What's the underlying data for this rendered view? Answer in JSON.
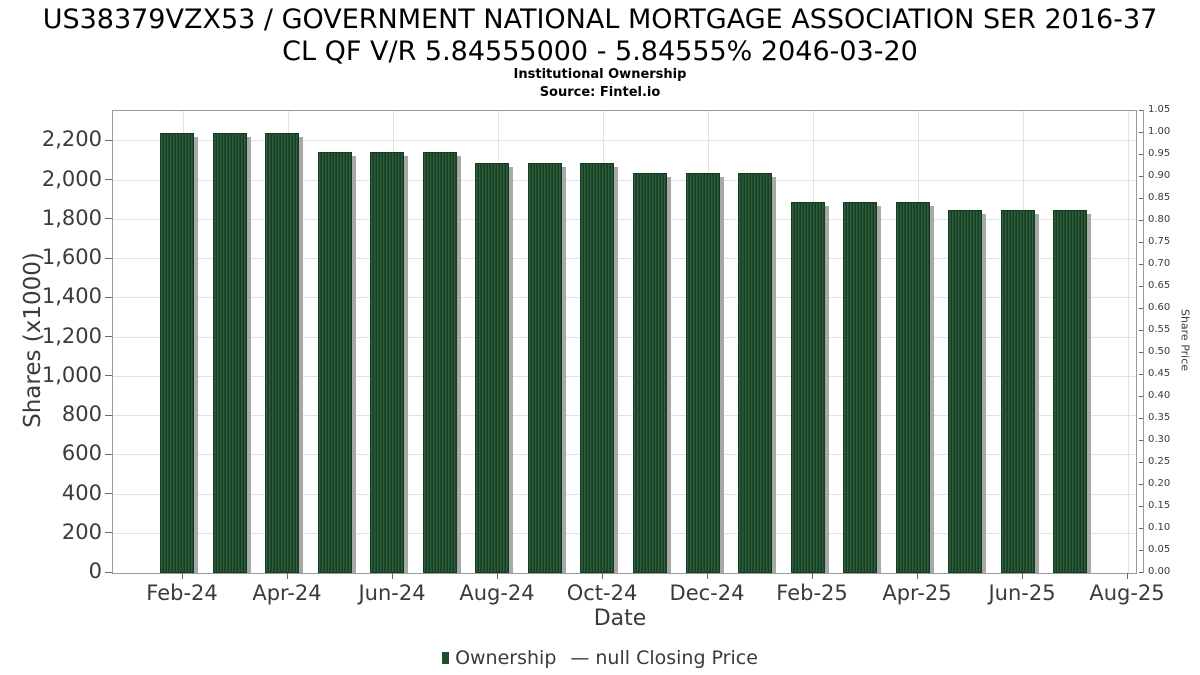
{
  "chart_data": {
    "type": "bar",
    "title_line1": "US38379VZX53 / GOVERNMENT NATIONAL MORTGAGE ASSOCIATION SER 2016-37",
    "title_line2": "CL QF V/R 5.84555000 - 5.84555% 2046-03-20",
    "subtitle": "Institutional Ownership",
    "source": "Source: Fintel.io",
    "xlabel": "Date",
    "ylabel": "Shares (x1000)",
    "y2label": "Share Price",
    "categories": [
      "Feb-24",
      "Mar-24",
      "Apr-24",
      "May-24",
      "Jun-24",
      "Jul-24",
      "Aug-24",
      "Sep-24",
      "Oct-24",
      "Nov-24",
      "Dec-24",
      "Jan-25",
      "Feb-25",
      "Mar-25",
      "Apr-25",
      "May-25",
      "Jun-25",
      "Jul-25"
    ],
    "values": [
      2245,
      2245,
      2245,
      2145,
      2145,
      2145,
      2090,
      2090,
      2090,
      2040,
      2040,
      2040,
      1890,
      1890,
      1890,
      1850,
      1850,
      1850
    ],
    "ylim": [
      0,
      2355
    ],
    "y2lim": [
      0,
      1.05
    ],
    "x_tick_labels": [
      "Feb-24",
      "Apr-24",
      "Jun-24",
      "Aug-24",
      "Oct-24",
      "Dec-24",
      "Feb-25",
      "Apr-25",
      "Jun-25",
      "Aug-25"
    ],
    "y_tick_values": [
      0,
      200,
      400,
      600,
      800,
      1000,
      1200,
      1400,
      1600,
      1800,
      2000,
      2200
    ],
    "y_tick_labels": [
      "0",
      "200",
      "400",
      "600",
      "800",
      "1,000",
      "1,200",
      "1,400",
      "1,600",
      "1,800",
      "2,000",
      "2,200"
    ],
    "y2_tick_labels": [
      "1.05",
      "1.00",
      "0.95",
      "0.90",
      "0.85",
      "0.80",
      "0.75",
      "0.70",
      "0.65",
      "0.60",
      "0.55",
      "0.50",
      "0.45",
      "0.40",
      "0.35",
      "0.30",
      "0.25",
      "0.20",
      "0.15",
      "0.10",
      "0.05",
      "0.00"
    ],
    "grid": true,
    "legend_position": "bottom",
    "legend": {
      "ownership_label": "Ownership",
      "price_label": "null Closing Price",
      "dash_glyph": "—"
    },
    "colors": {
      "bar_green": "#1f4c2c",
      "bar_shadow": "#a8a8a8",
      "gridline": "#e1e1e1",
      "spine": "#9a9a9a",
      "text": "#3b3b3b",
      "title": "#000000"
    }
  }
}
